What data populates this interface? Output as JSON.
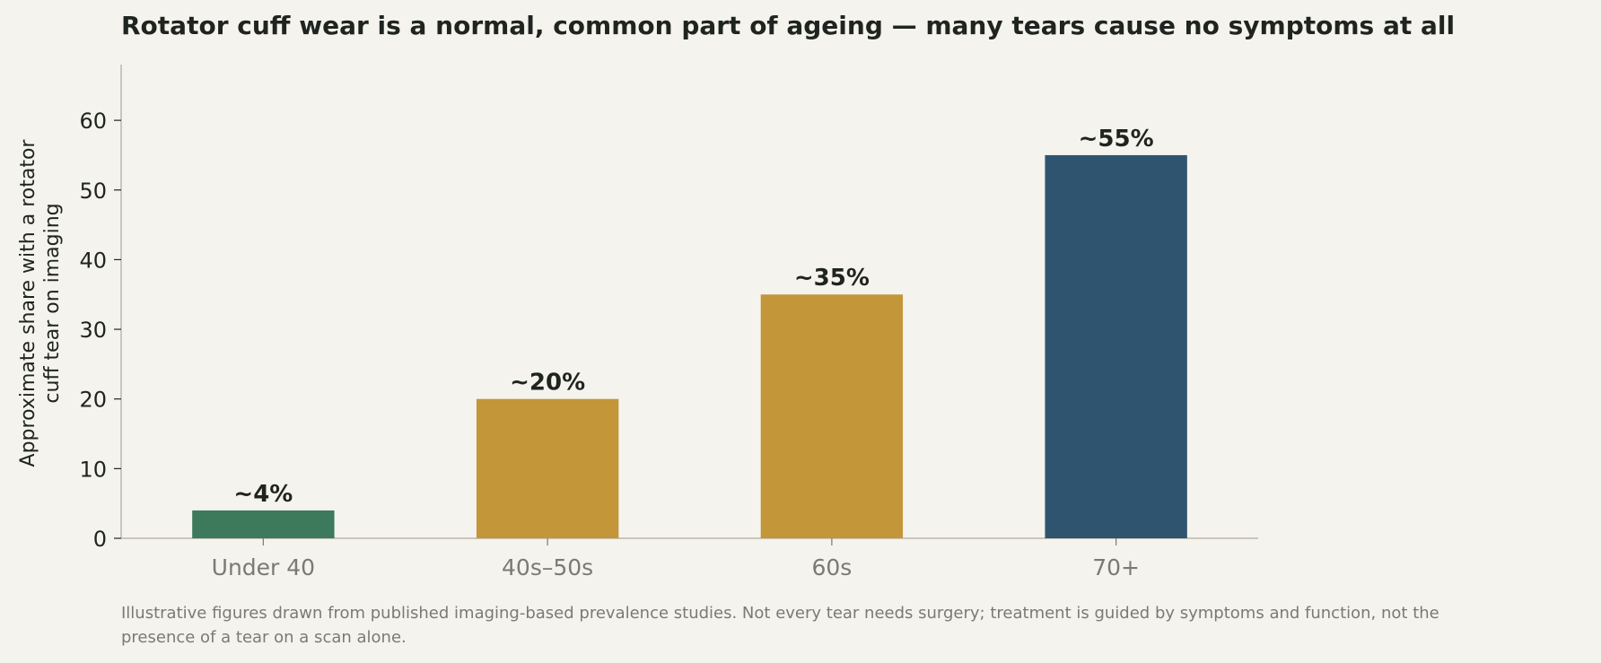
{
  "chart_data": {
    "type": "bar",
    "title": "Rotator cuff wear is a normal, common part of ageing — many tears cause no symptoms at all",
    "ylabel_lines": [
      "Approximate share with a rotator",
      "cuff tear on imaging"
    ],
    "xlabel": "",
    "categories": [
      "Under 40",
      "40s–50s",
      "60s",
      "70+"
    ],
    "values": [
      4,
      20,
      35,
      55
    ],
    "data_labels": [
      "~4%",
      "~20%",
      "~35%",
      "~55%"
    ],
    "colors": [
      "#3d7a5c",
      "#c3963a",
      "#c3963a",
      "#2e5470"
    ],
    "ylim": [
      0,
      68
    ],
    "yticks": [
      0,
      10,
      20,
      30,
      40,
      50,
      60
    ],
    "grid": false,
    "axis_color": "#bdb8a6"
  },
  "footnote": "Illustrative figures drawn from published imaging-based prevalence studies. Not every tear needs surgery; treatment is guided by symptoms and function, not the presence of a tear on a scan alone."
}
